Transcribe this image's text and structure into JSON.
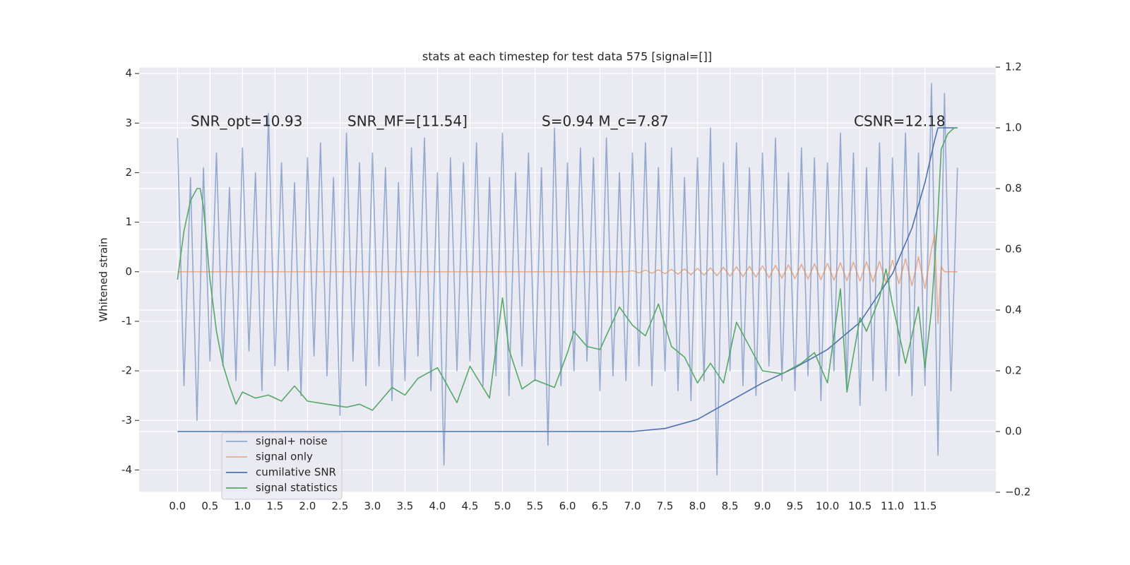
{
  "chart_data": {
    "type": "line",
    "title": "stats at each timestep for test data 575 [signal=[]]",
    "ylabel": "Whitened strain",
    "annotations": [
      "SNR_opt=10.93",
      "SNR_MF=[11.54]",
      "S=0.94   M_c=7.87",
      "CSNR=12.18"
    ],
    "xlim": [
      -0.59,
      12.59
    ],
    "ylim": [
      -4.45,
      4.13
    ],
    "y2lim": [
      -0.2,
      1.2
    ],
    "xticks": [
      {
        "value": 0,
        "label": "0.0"
      },
      0.5,
      {
        "value": 1,
        "label": "1.0"
      },
      1.5,
      {
        "value": 2,
        "label": "2.0"
      },
      2.5,
      {
        "value": 3,
        "label": "3.0"
      },
      3.5,
      {
        "value": 4,
        "label": "4.0"
      },
      4.5,
      {
        "value": 5,
        "label": "5.0"
      },
      5.5,
      {
        "value": 6,
        "label": "6.0"
      },
      6.5,
      {
        "value": 7,
        "label": "7.0"
      },
      7.5,
      {
        "value": 8,
        "label": "8.0"
      },
      8.5,
      {
        "value": 9,
        "label": "9.0"
      },
      9.5,
      {
        "value": 10,
        "label": "10.0"
      },
      10.5,
      {
        "value": 11,
        "label": "11.0"
      },
      11.5
    ],
    "yticks": [
      -4,
      -3,
      -2,
      -1,
      0,
      1,
      2,
      3,
      4
    ],
    "y2ticks": [
      {
        "value": -0.2,
        "label": "−0.2"
      },
      {
        "value": 0,
        "label": "0.0"
      },
      0.2,
      0.4,
      0.6,
      0.8,
      {
        "value": 1,
        "label": "1.0"
      },
      1.2
    ],
    "grid": true,
    "legend": "lower left",
    "series": [
      {
        "name": "signal+ noise",
        "color": "#4c72b0",
        "alpha": 0.55,
        "axis": "y",
        "x": [
          0,
          0.1,
          0.2,
          0.3,
          0.4,
          0.5,
          0.6,
          0.7,
          0.8,
          0.9,
          1,
          1.1,
          1.2,
          1.3,
          1.4,
          1.5,
          1.6,
          1.7,
          1.8,
          1.9,
          2,
          2.1,
          2.2,
          2.3,
          2.4,
          2.5,
          2.6,
          2.7,
          2.8,
          2.9,
          3,
          3.1,
          3.2,
          3.3,
          3.4,
          3.5,
          3.6,
          3.7,
          3.8,
          3.9,
          4,
          4.1,
          4.2,
          4.3,
          4.4,
          4.5,
          4.6,
          4.7,
          4.8,
          4.9,
          5,
          5.1,
          5.2,
          5.3,
          5.4,
          5.5,
          5.6,
          5.7,
          5.8,
          5.9,
          6,
          6.1,
          6.2,
          6.3,
          6.4,
          6.5,
          6.6,
          6.7,
          6.8,
          6.9,
          7,
          7.1,
          7.2,
          7.3,
          7.4,
          7.5,
          7.6,
          7.7,
          7.8,
          7.9,
          8,
          8.1,
          8.2,
          8.3,
          8.4,
          8.5,
          8.6,
          8.7,
          8.8,
          8.9,
          9,
          9.1,
          9.2,
          9.3,
          9.4,
          9.5,
          9.6,
          9.7,
          9.8,
          9.9,
          10,
          10.1,
          10.2,
          10.3,
          10.4,
          10.5,
          10.6,
          10.7,
          10.8,
          10.9,
          11,
          11.1,
          11.2,
          11.3,
          11.4,
          11.5,
          11.6,
          11.7,
          11.8,
          11.9,
          12
        ],
        "values": [
          2.7,
          -2.3,
          1.9,
          -3.0,
          2.1,
          -1.8,
          2.4,
          -1.9,
          1.7,
          -2.2,
          2.5,
          -1.6,
          2.0,
          -2.4,
          3.2,
          -1.9,
          2.2,
          -2.0,
          1.8,
          -2.5,
          2.3,
          -1.7,
          2.6,
          -2.1,
          1.9,
          -2.9,
          2.8,
          -1.8,
          2.2,
          -2.3,
          2.4,
          -1.9,
          2.1,
          -2.6,
          1.8,
          -2.2,
          2.5,
          -1.7,
          2.7,
          -2.4,
          2.0,
          -3.9,
          2.3,
          -2.0,
          2.2,
          -1.8,
          2.6,
          -2.3,
          1.9,
          -2.1,
          2.8,
          -2.5,
          2.0,
          -1.9,
          2.4,
          -2.2,
          2.1,
          -3.5,
          2.9,
          -2.3,
          2.2,
          -2.0,
          2.5,
          -1.8,
          2.3,
          -2.4,
          2.7,
          -2.1,
          2.0,
          -2.2,
          2.4,
          -1.9,
          2.6,
          -2.3,
          2.1,
          -2.0,
          2.5,
          -2.4,
          1.9,
          -2.6,
          2.3,
          -2.2,
          2.9,
          -4.1,
          2.2,
          -2.0,
          2.6,
          -2.3,
          2.1,
          -2.5,
          2.4,
          -1.9,
          2.7,
          -2.2,
          2.0,
          -2.4,
          2.5,
          -2.1,
          2.3,
          -2.6,
          2.2,
          -2.0,
          2.8,
          -2.3,
          2.4,
          -2.7,
          2.1,
          -2.2,
          2.6,
          -2.4,
          2.3,
          -2.1,
          2.8,
          -2.5,
          2.4,
          -2.3,
          3.8,
          -3.7,
          3.6,
          -2.4,
          2.1
        ]
      },
      {
        "name": "signal only",
        "color": "#dd8452",
        "alpha": 0.6,
        "axis": "y",
        "x": [
          0,
          6.9,
          7,
          7.1,
          7.2,
          7.3,
          7.4,
          7.5,
          7.6,
          7.7,
          7.8,
          7.9,
          8,
          8.1,
          8.2,
          8.3,
          8.4,
          8.5,
          8.6,
          8.7,
          8.8,
          8.9,
          9,
          9.1,
          9.2,
          9.3,
          9.4,
          9.5,
          9.6,
          9.7,
          9.8,
          9.9,
          10,
          10.1,
          10.2,
          10.3,
          10.4,
          10.5,
          10.6,
          10.7,
          10.8,
          10.9,
          11,
          11.1,
          11.2,
          11.3,
          11.4,
          11.5,
          11.6,
          11.65,
          11.7,
          11.75,
          11.8,
          12
        ],
        "values": [
          0,
          0,
          0.02,
          -0.02,
          0.03,
          -0.03,
          0.04,
          -0.04,
          0.05,
          -0.05,
          0.06,
          -0.06,
          0.07,
          -0.07,
          0.08,
          -0.08,
          0.09,
          -0.09,
          0.1,
          -0.1,
          0.11,
          -0.11,
          0.12,
          -0.12,
          0.13,
          -0.13,
          0.14,
          -0.14,
          0.15,
          -0.15,
          0.16,
          -0.16,
          0.17,
          -0.17,
          0.18,
          -0.18,
          0.19,
          -0.19,
          0.2,
          -0.2,
          0.21,
          -0.22,
          0.23,
          -0.24,
          0.26,
          -0.28,
          0.3,
          -0.34,
          0.45,
          0.75,
          -1.05,
          0.1,
          0,
          0
        ]
      },
      {
        "name": "cumilative SNR",
        "color": "#4c72b0",
        "axis": "y2",
        "x": [
          0,
          7,
          7.5,
          8,
          8.5,
          9,
          9.5,
          10,
          10.5,
          11,
          11.3,
          11.5,
          11.65,
          11.7,
          12
        ],
        "values": [
          0,
          0,
          0.01,
          0.04,
          0.1,
          0.16,
          0.21,
          0.27,
          0.36,
          0.52,
          0.67,
          0.82,
          0.96,
          1,
          1
        ]
      },
      {
        "name": "signal statistics",
        "color": "#55a868",
        "axis": "y2",
        "x": [
          0,
          0.1,
          0.2,
          0.3,
          0.35,
          0.4,
          0.5,
          0.6,
          0.7,
          0.8,
          0.9,
          1,
          1.2,
          1.4,
          1.6,
          1.8,
          2,
          2.3,
          2.6,
          2.8,
          3,
          3.3,
          3.5,
          3.7,
          4,
          4.3,
          4.5,
          4.8,
          5,
          5.1,
          5.3,
          5.5,
          5.8,
          6,
          6.1,
          6.3,
          6.5,
          6.8,
          7,
          7.2,
          7.4,
          7.6,
          7.8,
          8,
          8.2,
          8.4,
          8.6,
          8.8,
          9,
          9.3,
          9.6,
          9.8,
          10,
          10.2,
          10.3,
          10.5,
          10.6,
          10.8,
          10.9,
          11,
          11.2,
          11.4,
          11.5,
          11.6,
          11.7,
          11.75,
          11.85,
          11.95,
          12
        ],
        "values": [
          0.5,
          0.66,
          0.76,
          0.8,
          0.8,
          0.74,
          0.5,
          0.33,
          0.22,
          0.15,
          0.09,
          0.13,
          0.11,
          0.12,
          0.1,
          0.15,
          0.1,
          0.09,
          0.08,
          0.09,
          0.07,
          0.145,
          0.12,
          0.175,
          0.21,
          0.095,
          0.215,
          0.11,
          0.44,
          0.27,
          0.14,
          0.17,
          0.145,
          0.26,
          0.33,
          0.28,
          0.27,
          0.41,
          0.35,
          0.315,
          0.42,
          0.28,
          0.245,
          0.16,
          0.225,
          0.16,
          0.36,
          0.28,
          0.2,
          0.19,
          0.225,
          0.26,
          0.16,
          0.47,
          0.13,
          0.375,
          0.33,
          0.44,
          0.535,
          0.42,
          0.225,
          0.41,
          0.21,
          0.4,
          0.72,
          0.93,
          0.98,
          1,
          1
        ]
      }
    ]
  }
}
